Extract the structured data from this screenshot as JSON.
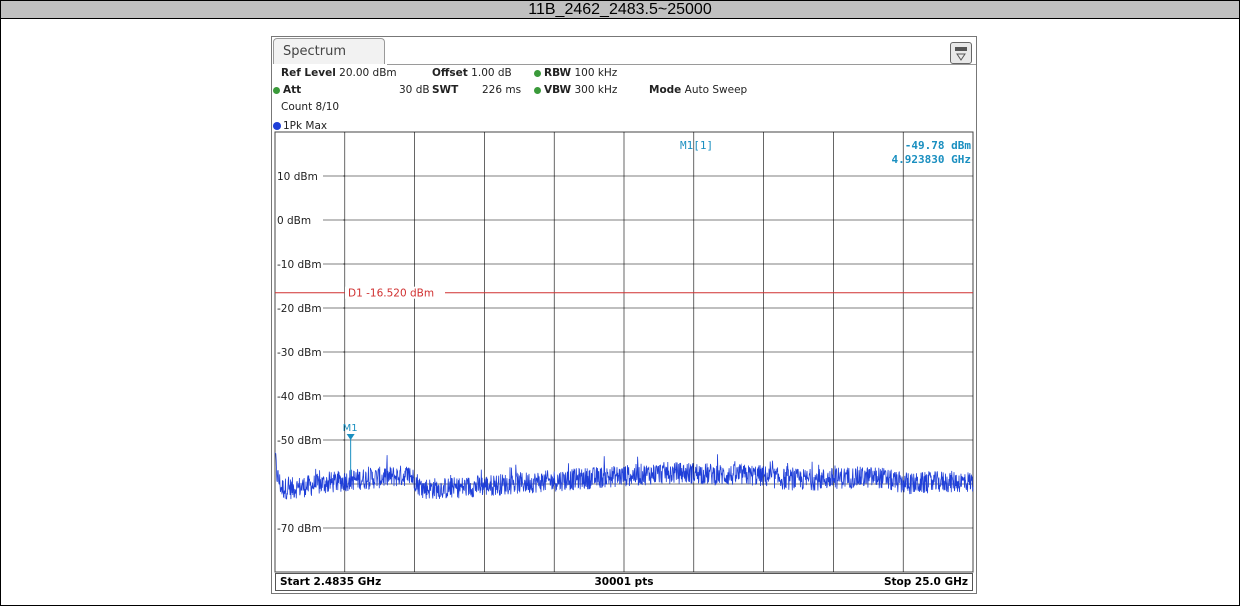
{
  "window_title": "11B_2462_2483.5~25000",
  "tab_label": "Spectrum",
  "settings": {
    "ref_level_label": "Ref Level",
    "ref_level_value": "20.00 dBm",
    "offset_label": "Offset",
    "offset_value": "1.00 dB",
    "rbw_label": "RBW",
    "rbw_value": "100 kHz",
    "att_label": "Att",
    "att_value": "30 dB",
    "swt_label": "SWT",
    "swt_value": "226 ms",
    "vbw_label": "VBW",
    "vbw_value": "300 kHz",
    "mode_label": "Mode",
    "mode_value": "Auto Sweep",
    "count": "Count 8/10"
  },
  "trace_label": "1Pk Max",
  "marker": {
    "label": "M1[1]",
    "tag": "M1",
    "level": "-49.78 dBm",
    "frequency": "4.923830 GHz"
  },
  "footer": {
    "start": "Start 2.4835 GHz",
    "points": "30001 pts",
    "stop": "Stop 25.0 GHz"
  },
  "chart_data": {
    "type": "line",
    "title": "",
    "xlabel": "",
    "ylabel": "",
    "xlim": [
      2.4835,
      25.0
    ],
    "x_unit": "GHz",
    "ylim": [
      -80,
      20
    ],
    "y_ticks": [
      10,
      0,
      -10,
      -20,
      -30,
      -40,
      -50,
      -70
    ],
    "y_tick_labels": [
      "10 dBm",
      "0 dBm",
      "-10 dBm",
      "-20 dBm",
      "-30 dBm",
      "-40 dBm",
      "-50 dBm",
      "-70 dBm"
    ],
    "grid": true,
    "display_line": {
      "label": "D1 -16.520 dBm",
      "value": -16.52,
      "color": "#d03030"
    },
    "marker_point": {
      "x": 4.92383,
      "y": -49.78
    },
    "series": [
      {
        "color": "#1f3fd8",
        "envelope_x": [
          2.4835,
          2.55,
          2.7,
          3.0,
          3.5,
          4.0,
          4.5,
          5.0,
          6.0,
          6.8,
          7.0,
          7.2,
          8.0,
          9.0,
          10.0,
          11.0,
          12.0,
          13.0,
          14.0,
          15.0,
          16.0,
          17.0,
          18.0,
          18.5,
          19.0,
          20.0,
          21.0,
          22.0,
          22.5,
          23.0,
          24.0,
          25.0
        ],
        "envelope_y": [
          -54,
          -58,
          -61,
          -61,
          -60.5,
          -60,
          -59.5,
          -59,
          -58.5,
          -58,
          -59,
          -61,
          -61,
          -60.5,
          -60,
          -59.5,
          -59,
          -58.5,
          -58,
          -57.5,
          -57.5,
          -58,
          -58,
          -58.5,
          -59,
          -59,
          -58.5,
          -58.5,
          -59.5,
          -60,
          -59.5,
          -59.5
        ]
      }
    ],
    "colors": {
      "trace": "#1f3fd8",
      "display_line": "#d03030",
      "marker": "#1a8fc0",
      "grid": "#000000"
    }
  }
}
